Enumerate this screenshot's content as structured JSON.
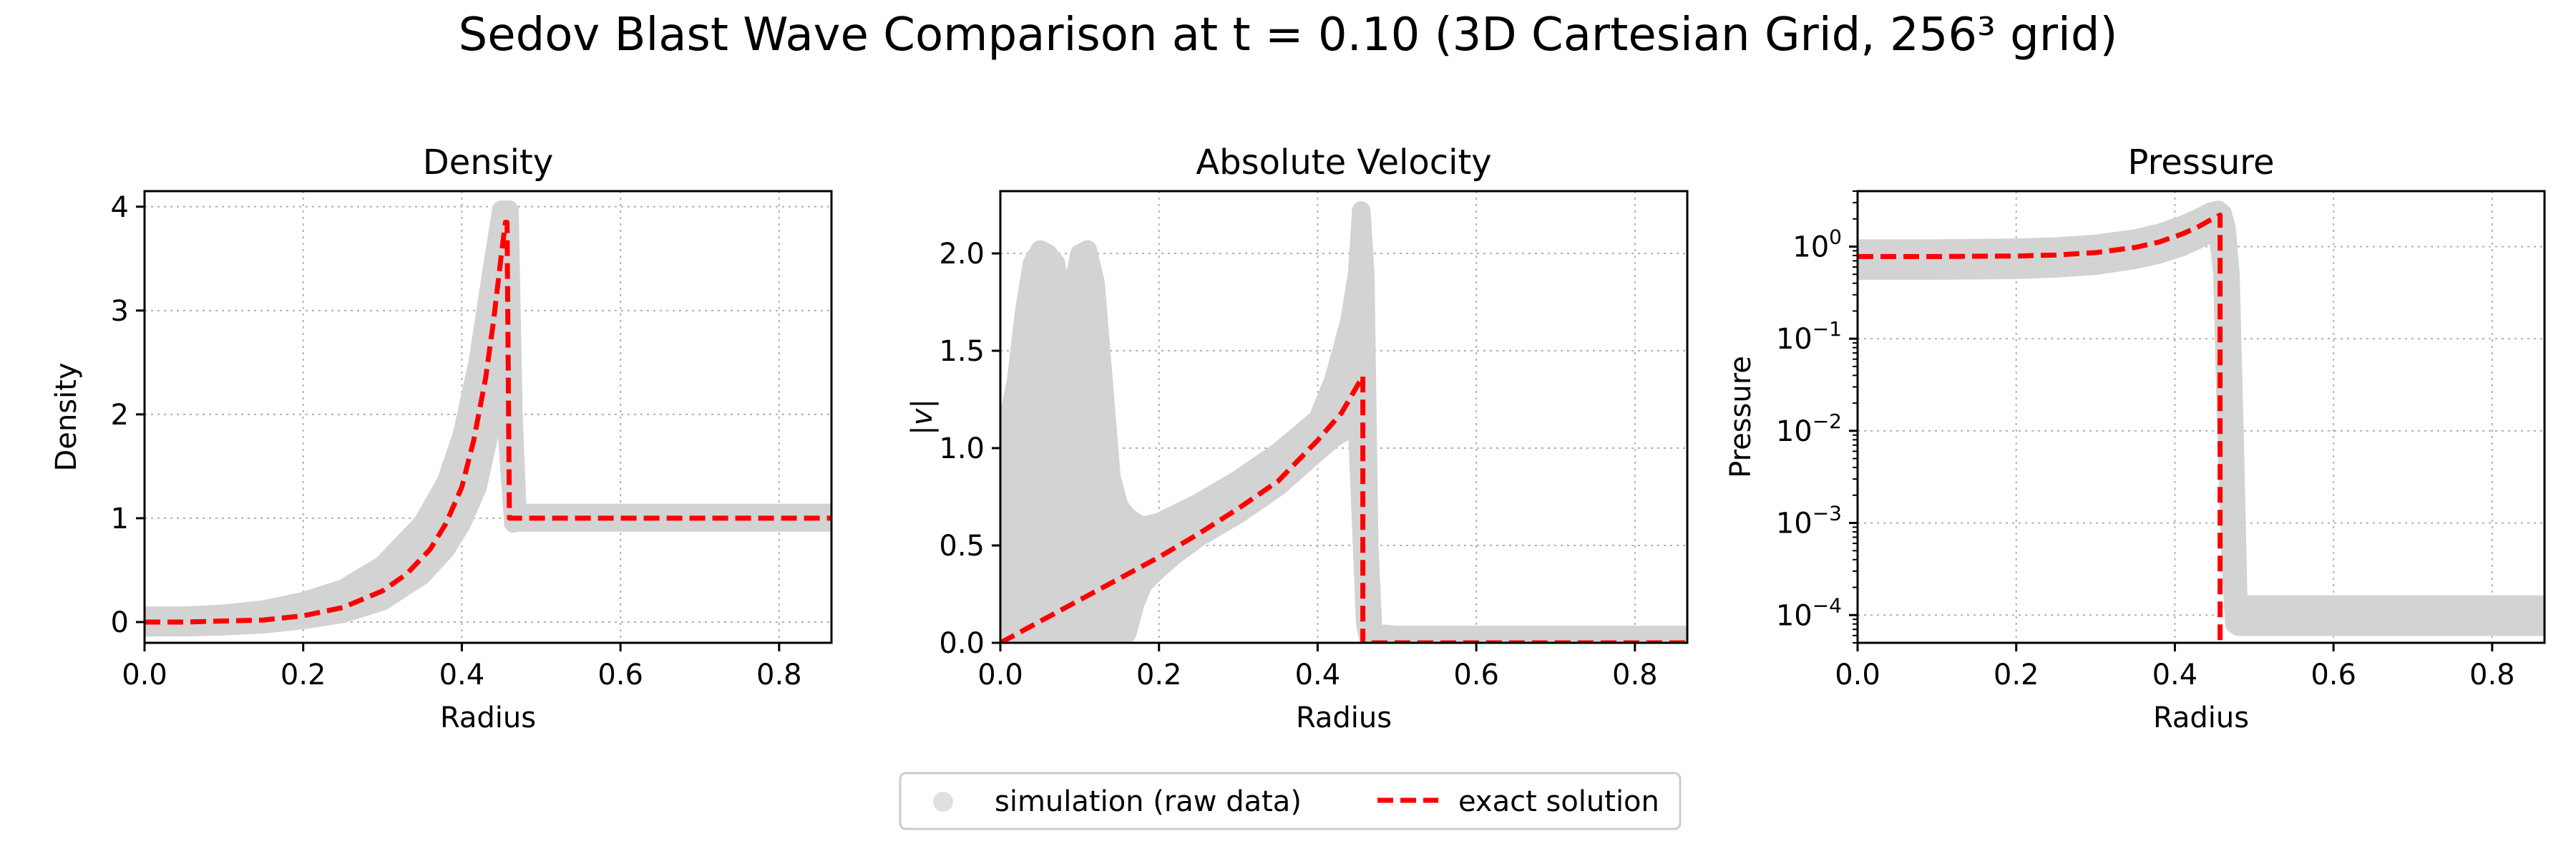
{
  "figure": {
    "title": "Sedov Blast Wave Comparison at t = 0.10 (3D Cartesian Grid, 256³ grid)"
  },
  "colors": {
    "simulation": "#d3d3d3",
    "exact": "#ff0000",
    "grid": "#b0b0b0",
    "axes": "#000000"
  },
  "legend": {
    "placement": "bottom-center",
    "simulation_label": "simulation (raw data)",
    "exact_label": "exact solution"
  },
  "chart_data": [
    {
      "type": "scatter",
      "title": "Density",
      "xlabel": "Radius",
      "ylabel": "Density",
      "xlim": [
        0.0,
        0.866
      ],
      "ylim": [
        -0.2,
        4.15
      ],
      "yscale": "linear",
      "grid": true,
      "xticks": [
        0.0,
        0.2,
        0.4,
        0.6,
        0.8
      ],
      "xtick_labels": [
        "0.0",
        "0.2",
        "0.4",
        "0.6",
        "0.8"
      ],
      "yticks": [
        0,
        1,
        2,
        3,
        4
      ],
      "ytick_labels": [
        "0",
        "1",
        "2",
        "3",
        "4"
      ],
      "series": [
        {
          "name": "exact solution",
          "style": "dashed",
          "x": [
            0.0,
            0.05,
            0.1,
            0.15,
            0.2,
            0.25,
            0.3,
            0.33,
            0.36,
            0.38,
            0.4,
            0.415,
            0.43,
            0.44,
            0.45,
            0.455,
            0.457,
            0.46,
            0.866
          ],
          "y": [
            0.0,
            0.0,
            0.01,
            0.02,
            0.06,
            0.14,
            0.3,
            0.46,
            0.7,
            0.95,
            1.3,
            1.75,
            2.35,
            2.9,
            3.55,
            3.85,
            3.85,
            1.0,
            1.0
          ]
        },
        {
          "name": "simulation (raw data)",
          "style": "band",
          "x": [
            0.0,
            0.05,
            0.1,
            0.15,
            0.2,
            0.25,
            0.3,
            0.35,
            0.38,
            0.4,
            0.42,
            0.44,
            0.45,
            0.46,
            0.465,
            0.47,
            0.5,
            0.7,
            0.866
          ],
          "ylow": [
            -0.05,
            -0.05,
            -0.04,
            -0.02,
            0.02,
            0.08,
            0.2,
            0.45,
            0.7,
            0.95,
            1.3,
            2.0,
            2.6,
            1.5,
            0.95,
            0.96,
            0.96,
            0.96,
            0.96
          ],
          "yhigh": [
            0.06,
            0.06,
            0.08,
            0.12,
            0.2,
            0.32,
            0.55,
            0.95,
            1.35,
            1.8,
            2.5,
            3.5,
            3.97,
            3.97,
            2.0,
            1.05,
            1.05,
            1.05,
            1.05
          ]
        }
      ]
    },
    {
      "type": "scatter",
      "title": "Absolute Velocity",
      "xlabel": "Radius",
      "ylabel": "|v|",
      "xlim": [
        0.0,
        0.866
      ],
      "ylim": [
        0.0,
        2.32
      ],
      "yscale": "linear",
      "grid": true,
      "xticks": [
        0.0,
        0.2,
        0.4,
        0.6,
        0.8
      ],
      "xtick_labels": [
        "0.0",
        "0.2",
        "0.4",
        "0.6",
        "0.8"
      ],
      "yticks": [
        0.0,
        0.5,
        1.0,
        1.5,
        2.0
      ],
      "ytick_labels": [
        "0.0",
        "0.5",
        "1.0",
        "1.5",
        "2.0"
      ],
      "series": [
        {
          "name": "exact solution",
          "style": "dashed",
          "x": [
            0.0,
            0.05,
            0.1,
            0.15,
            0.2,
            0.25,
            0.3,
            0.35,
            0.4,
            0.43,
            0.457,
            0.457,
            0.866
          ],
          "y": [
            0.0,
            0.11,
            0.22,
            0.33,
            0.44,
            0.56,
            0.69,
            0.83,
            1.04,
            1.18,
            1.37,
            0.0,
            0.0
          ]
        },
        {
          "name": "simulation (raw data)",
          "style": "band",
          "x": [
            0.0,
            0.01,
            0.02,
            0.03,
            0.04,
            0.05,
            0.06,
            0.07,
            0.08,
            0.09,
            0.1,
            0.11,
            0.12,
            0.13,
            0.14,
            0.15,
            0.16,
            0.17,
            0.18,
            0.2,
            0.22,
            0.25,
            0.3,
            0.35,
            0.4,
            0.42,
            0.44,
            0.45,
            0.455,
            0.46,
            0.465,
            0.47,
            0.5,
            0.7,
            0.866
          ],
          "ylow": [
            0.0,
            0.0,
            0.0,
            0.0,
            0.0,
            0.0,
            0.0,
            0.0,
            0.0,
            0.0,
            0.0,
            0.0,
            0.0,
            0.0,
            0.0,
            0.0,
            0.05,
            0.2,
            0.3,
            0.38,
            0.45,
            0.54,
            0.66,
            0.8,
            0.98,
            1.05,
            1.1,
            1.1,
            0.6,
            0.1,
            0.0,
            0.0,
            0.0,
            0.0,
            0.0
          ],
          "yhigh": [
            1.0,
            1.15,
            1.35,
            1.7,
            1.95,
            2.02,
            2.0,
            1.95,
            1.7,
            1.8,
            2.0,
            2.02,
            1.85,
            1.35,
            0.85,
            0.7,
            0.65,
            0.62,
            0.6,
            0.62,
            0.66,
            0.72,
            0.84,
            0.98,
            1.15,
            1.35,
            1.65,
            1.9,
            2.22,
            1.9,
            0.5,
            0.05,
            0.04,
            0.04,
            0.04
          ]
        }
      ]
    },
    {
      "type": "scatter",
      "title": "Pressure",
      "xlabel": "Radius",
      "ylabel": "Pressure",
      "xlim": [
        0.0,
        0.866
      ],
      "ylim": [
        5e-05,
        4.0
      ],
      "yscale": "log",
      "grid": true,
      "xticks": [
        0.0,
        0.2,
        0.4,
        0.6,
        0.8
      ],
      "xtick_labels": [
        "0.0",
        "0.2",
        "0.4",
        "0.6",
        "0.8"
      ],
      "yticks": [
        0.0001,
        0.001,
        0.01,
        0.1,
        1
      ],
      "ytick_exponents": [
        "−4",
        "−3",
        "−2",
        "−1",
        "0"
      ],
      "ytick_base": "10",
      "series": [
        {
          "name": "exact solution",
          "style": "dashed",
          "x": [
            0.0,
            0.1,
            0.2,
            0.25,
            0.3,
            0.35,
            0.38,
            0.41,
            0.43,
            0.445,
            0.457,
            0.457
          ],
          "y": [
            0.78,
            0.78,
            0.79,
            0.81,
            0.86,
            0.98,
            1.12,
            1.38,
            1.65,
            1.95,
            2.2,
            5e-05
          ]
        },
        {
          "name": "simulation (raw data)",
          "style": "band",
          "x": [
            0.0,
            0.1,
            0.2,
            0.25,
            0.3,
            0.35,
            0.38,
            0.41,
            0.43,
            0.445,
            0.455,
            0.46,
            0.465,
            0.47,
            0.475,
            0.48,
            0.5,
            0.7,
            0.866
          ],
          "ylow": [
            0.55,
            0.55,
            0.56,
            0.58,
            0.62,
            0.72,
            0.82,
            1.0,
            1.2,
            1.4,
            1.3,
            0.5,
            0.01,
            0.0005,
            8e-05,
            7.5e-05,
            7.5e-05,
            7.5e-05,
            7.5e-05
          ],
          "yhigh": [
            0.95,
            0.95,
            0.97,
            1.0,
            1.07,
            1.22,
            1.4,
            1.72,
            2.05,
            2.4,
            2.5,
            2.3,
            1.6,
            0.5,
            0.01,
            0.00013,
            0.00013,
            0.00013,
            0.00013
          ]
        }
      ]
    }
  ]
}
